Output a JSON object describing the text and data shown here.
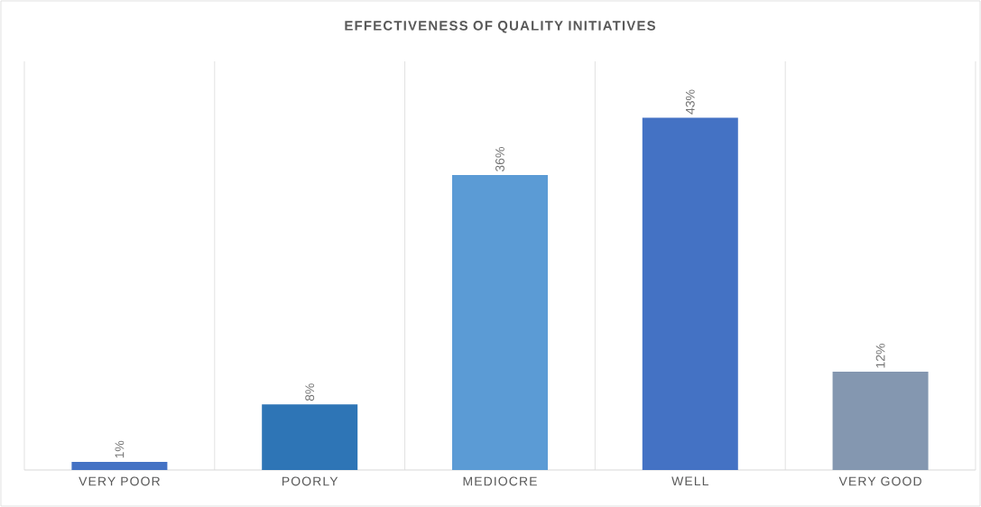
{
  "chart_data": {
    "type": "bar",
    "title": "EFFECTIVENESS OF QUALITY INITIATIVES",
    "categories": [
      "VERY POOR",
      "POORLY",
      "MEDIOCRE",
      "WELL",
      "VERY GOOD"
    ],
    "values": [
      1,
      8,
      36,
      43,
      12
    ],
    "value_labels": [
      "1%",
      "8%",
      "36%",
      "43%",
      "12%"
    ],
    "colors": [
      "#4472c4",
      "#2e75b6",
      "#5b9bd5",
      "#4472c4",
      "#8497b0"
    ],
    "grid": "x"
  }
}
